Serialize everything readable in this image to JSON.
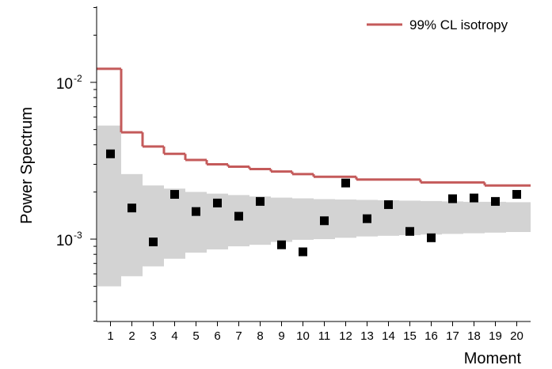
{
  "chart_data": {
    "type": "scatter",
    "title": "",
    "xlabel": "Moment",
    "ylabel": "Power Spectrum",
    "yscale": "log",
    "ylim": [
      0.0005,
      0.035
    ],
    "xlim": [
      0.5,
      20.5
    ],
    "grid": false,
    "legend_position": "top-right",
    "y_tick_labels": [
      {
        "value": 0.01,
        "base": "10",
        "exponent": "-2"
      },
      {
        "value": 0.001,
        "base": "10",
        "exponent": "-3"
      }
    ],
    "x": [
      1,
      2,
      3,
      4,
      5,
      6,
      7,
      8,
      9,
      10,
      11,
      12,
      13,
      14,
      15,
      16,
      17,
      18,
      19,
      20
    ],
    "x_tick_labels": [
      "1",
      "2",
      "3",
      "4",
      "5",
      "6",
      "7",
      "8",
      "9",
      "10",
      "11",
      "12",
      "13",
      "14",
      "15",
      "16",
      "17",
      "18",
      "19",
      "20"
    ],
    "series": [
      {
        "name": "",
        "kind": "points",
        "color": "#000000",
        "values": [
          0.0035,
          0.00158,
          0.00096,
          0.00193,
          0.0015,
          0.0017,
          0.0014,
          0.00174,
          0.00092,
          0.00083,
          0.00131,
          0.00228,
          0.00135,
          0.00166,
          0.00112,
          0.00102,
          0.00181,
          0.00183,
          0.00174,
          0.00193
        ]
      },
      {
        "name": "99% CL isotropy",
        "kind": "step-line",
        "color": "#c45a5a",
        "values": [
          0.0122,
          0.0048,
          0.0039,
          0.0035,
          0.0032,
          0.003,
          0.0029,
          0.0028,
          0.0027,
          0.0026,
          0.0025,
          0.0025,
          0.0024,
          0.0024,
          0.0024,
          0.0023,
          0.0023,
          0.0023,
          0.0022,
          0.0022
        ]
      },
      {
        "name": "",
        "kind": "band",
        "color": "#d3d3d3",
        "lower": [
          0.0005,
          0.00058,
          0.00067,
          0.00075,
          0.00082,
          0.00086,
          0.0009,
          0.00092,
          0.00096,
          0.00099,
          0.001,
          0.00102,
          0.00104,
          0.00105,
          0.00106,
          0.00107,
          0.00108,
          0.00109,
          0.0011,
          0.00111
        ],
        "upper": [
          0.0053,
          0.0026,
          0.0022,
          0.0021,
          0.002,
          0.00195,
          0.00191,
          0.00187,
          0.00184,
          0.00182,
          0.0018,
          0.00179,
          0.00178,
          0.00177,
          0.00176,
          0.00175,
          0.00174,
          0.00173,
          0.00173,
          0.00172
        ]
      }
    ]
  }
}
